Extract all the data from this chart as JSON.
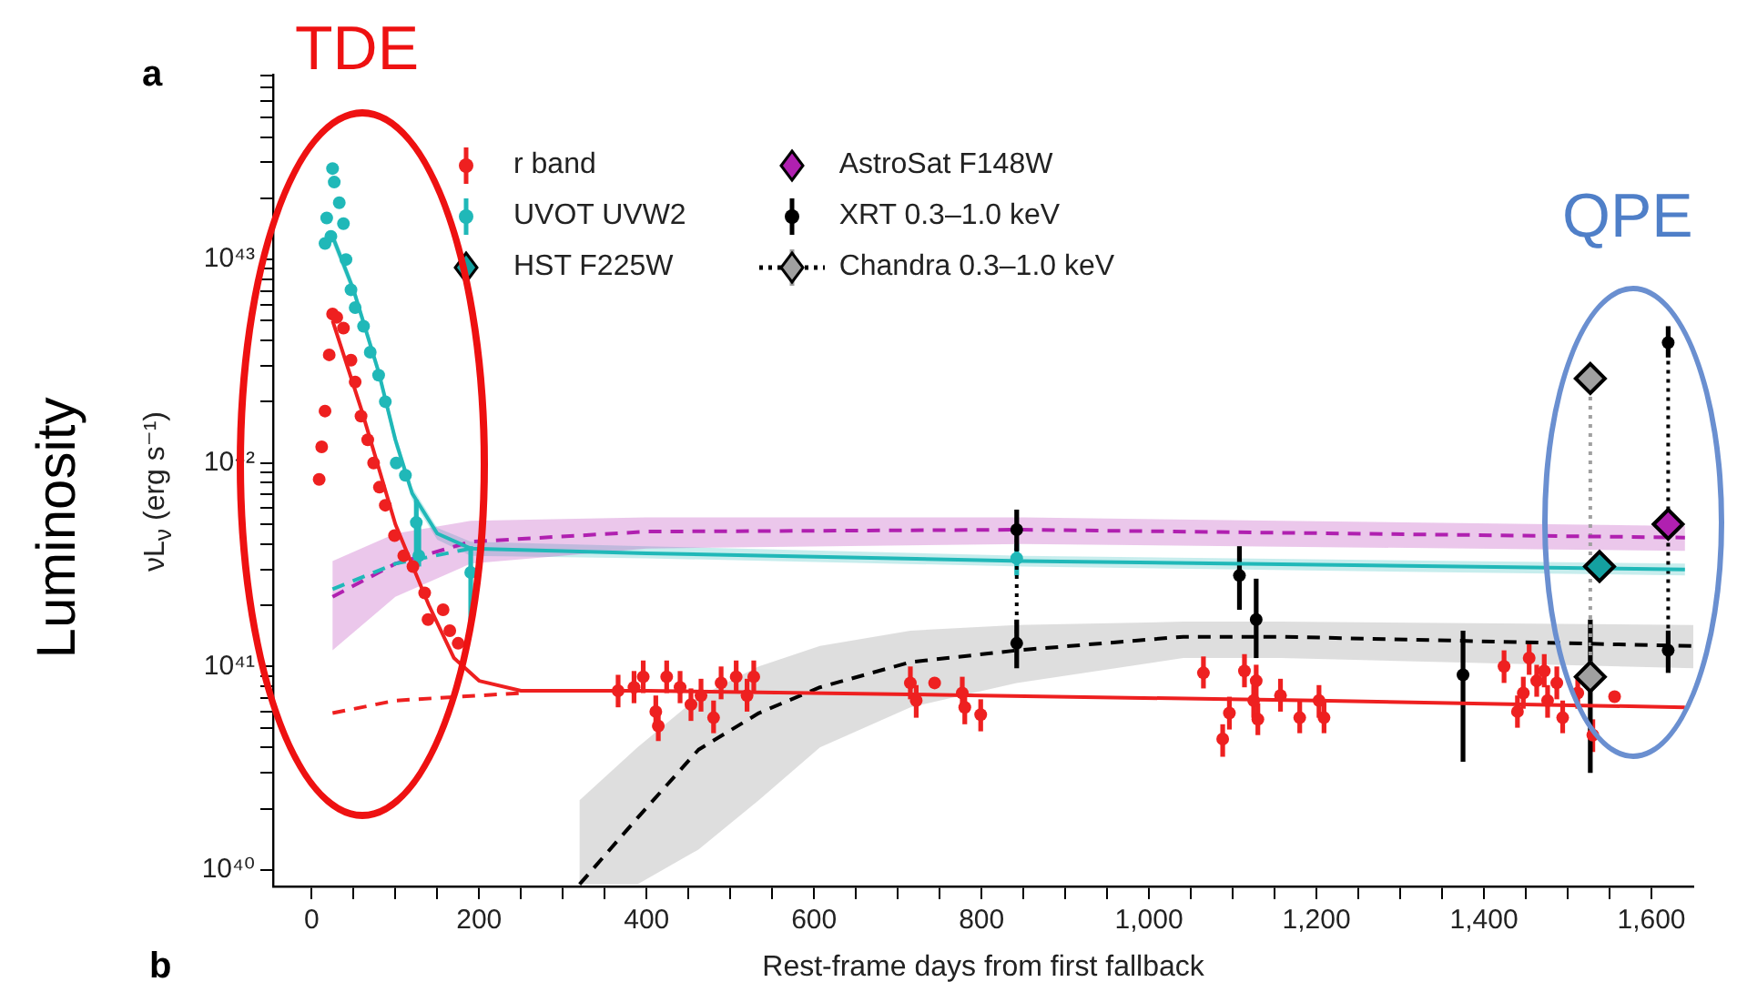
{
  "chart_data": {
    "type": "scatter",
    "xlabel": "Rest-frame days from first fallback",
    "ylabel": "νL$_{ν}$ (erg s⁻¹)",
    "log": "y",
    "legend": "top",
    "xlim": [
      -46,
      1650
    ],
    "ylim": [
      8.3e+39,
      8.1e+43
    ],
    "xticks": [
      {
        "value": 0,
        "label": "0"
      },
      {
        "value": 50,
        "label": null
      },
      {
        "value": 100,
        "label": null
      },
      {
        "value": 150,
        "label": null
      },
      {
        "value": 200,
        "label": "200"
      },
      {
        "value": 250,
        "label": null
      },
      {
        "value": 300,
        "label": null
      },
      {
        "value": 350,
        "label": null
      },
      {
        "value": 400,
        "label": "400"
      },
      {
        "value": 450,
        "label": null
      },
      {
        "value": 500,
        "label": null
      },
      {
        "value": 550,
        "label": null
      },
      {
        "value": 600,
        "label": "600"
      },
      {
        "value": 650,
        "label": null
      },
      {
        "value": 700,
        "label": null
      },
      {
        "value": 750,
        "label": null
      },
      {
        "value": 800,
        "label": "800"
      },
      {
        "value": 850,
        "label": null
      },
      {
        "value": 900,
        "label": null
      },
      {
        "value": 950,
        "label": null
      },
      {
        "value": 1000,
        "label": "1,000"
      },
      {
        "value": 1050,
        "label": null
      },
      {
        "value": 1100,
        "label": null
      },
      {
        "value": 1150,
        "label": null
      },
      {
        "value": 1200,
        "label": "1,200"
      },
      {
        "value": 1250,
        "label": null
      },
      {
        "value": 1300,
        "label": null
      },
      {
        "value": 1350,
        "label": null
      },
      {
        "value": 1400,
        "label": "1,400"
      },
      {
        "value": 1450,
        "label": null
      },
      {
        "value": 1500,
        "label": null
      },
      {
        "value": 1550,
        "label": null
      },
      {
        "value": 1600,
        "label": "1,600"
      }
    ],
    "yticks": [
      {
        "value": 1e+40,
        "label": "10⁴⁰"
      },
      {
        "value": 2e+40,
        "label": null
      },
      {
        "value": 3e+40,
        "label": null
      },
      {
        "value": 4e+40,
        "label": null
      },
      {
        "value": 5e+40,
        "label": null
      },
      {
        "value": 6e+40,
        "label": null
      },
      {
        "value": 7e+40,
        "label": null
      },
      {
        "value": 8e+40,
        "label": null
      },
      {
        "value": 9e+40,
        "label": null
      },
      {
        "value": 1e+41,
        "label": "10⁴¹"
      },
      {
        "value": 2e+41,
        "label": null
      },
      {
        "value": 3e+41,
        "label": null
      },
      {
        "value": 4e+41,
        "label": null
      },
      {
        "value": 5e+41,
        "label": null
      },
      {
        "value": 6e+41,
        "label": null
      },
      {
        "value": 7e+41,
        "label": null
      },
      {
        "value": 8e+41,
        "label": null
      },
      {
        "value": 9e+41,
        "label": null
      },
      {
        "value": 1e+42,
        "label": "10⁴²"
      },
      {
        "value": 2e+42,
        "label": null
      },
      {
        "value": 3e+42,
        "label": null
      },
      {
        "value": 4e+42,
        "label": null
      },
      {
        "value": 5e+42,
        "label": null
      },
      {
        "value": 6e+42,
        "label": null
      },
      {
        "value": 7e+42,
        "label": null
      },
      {
        "value": 8e+42,
        "label": null
      },
      {
        "value": 9e+42,
        "label": null
      },
      {
        "value": 1e+43,
        "label": "10⁴³"
      },
      {
        "value": 2e+43,
        "label": null
      },
      {
        "value": 3e+43,
        "label": null
      },
      {
        "value": 4e+43,
        "label": null
      },
      {
        "value": 5e+43,
        "label": null
      },
      {
        "value": 6e+43,
        "label": null
      },
      {
        "value": 7e+43,
        "label": null
      },
      {
        "value": 8e+43,
        "label": null
      }
    ],
    "annotations": [
      "a",
      "TDE",
      "QPE",
      "Luminosity",
      "b"
    ],
    "series": [
      {
        "type": "line",
        "color": "#ee2020",
        "line_style": "solid",
        "marker": "none",
        "x": [
          25,
          60,
          100,
          140,
          170,
          200,
          250,
          400,
          800,
          1200,
          1640
        ],
        "values": [
          5e+42,
          1.8e+42,
          5e+41,
          2e+41,
          1.1e+41,
          8.5e+40,
          7.6e+40,
          7.6e+40,
          7.2e+40,
          6.8e+40,
          6.3e+40
        ]
      },
      {
        "type": "line",
        "color": "#ee2020",
        "line_style": "dashed",
        "marker": "none",
        "x": [
          25,
          100,
          200,
          250
        ],
        "values": [
          5.9e+40,
          6.8e+40,
          7.2e+40,
          7.4e+40
        ]
      },
      {
        "type": "line",
        "color": "#20b8b8",
        "line_style": "solid",
        "marker": "none",
        "x": [
          25,
          50,
          80,
          100,
          120,
          150,
          190,
          400,
          850,
          1640
        ],
        "values": [
          1.3e+43,
          7.1e+42,
          2.8e+42,
          1.3e+42,
          7.1e+41,
          4.5e+41,
          3.8e+41,
          3.6e+41,
          3.3e+41,
          3e+41
        ],
        "lower": [
          1.2e+43,
          6.6e+42,
          2.6e+42,
          1.2e+42,
          6.6e+41,
          4.2e+41,
          3.5e+41,
          3.4e+41,
          3.1e+41,
          2.8e+41
        ],
        "upper": [
          1.4e+43,
          7.6e+42,
          3e+42,
          1.4e+42,
          7.6e+41,
          4.8e+41,
          4.1e+41,
          3.9e+41,
          3.5e+41,
          3.2e+41
        ]
      },
      {
        "type": "line",
        "color": "#20b8b8",
        "line_style": "dashed",
        "marker": "none",
        "x": [
          25,
          100,
          190
        ],
        "values": [
          2.4e+41,
          3.2e+41,
          3.8e+41
        ]
      },
      {
        "type": "line",
        "color": "#b020b0",
        "line_style": "dashed",
        "marker": "none",
        "x": [
          25,
          100,
          190,
          400,
          850,
          1640
        ],
        "values": [
          2.2e+41,
          3.2e+41,
          4.1e+41,
          4.6e+41,
          4.7e+41,
          4.3e+41
        ],
        "lower": [
          1.2e+41,
          2.2e+41,
          3.2e+41,
          3.8e+41,
          4e+41,
          3.7e+41
        ],
        "upper": [
          3.3e+41,
          4.5e+41,
          5.2e+41,
          5.4e+41,
          5.4e+41,
          4.9e+41
        ]
      },
      {
        "type": "line",
        "color": "#000000",
        "line_style": "dashed",
        "marker": "none",
        "x": [
          320,
          389,
          462,
          534,
          607,
          715,
          842,
          1041,
          1157,
          1650
        ],
        "values": [
          8.5e+39,
          1.8e+40,
          3.9e+40,
          5.9e+40,
          7.9e+40,
          1.05e+41,
          1.2e+41,
          1.4e+41,
          1.4e+41,
          1.26e+41
        ],
        "lower": [
          8.5e+39,
          8.5e+39,
          1.26e+40,
          2.2e+40,
          4e+40,
          6.3e+40,
          8.3e+40,
          1.1e+41,
          1.1e+41,
          9.8e+40
        ],
        "upper": [
          2.2e+40,
          4e+40,
          7.1e+40,
          1e+41,
          1.26e+41,
          1.5e+41,
          1.6e+41,
          1.66e+41,
          1.66e+41,
          1.6e+41
        ]
      },
      {
        "type": "line",
        "color": "#000000",
        "line_style": "dotted",
        "marker": "none",
        "x": [
          842,
          842
        ],
        "values": [
          4.7e+41,
          1.3e+41
        ]
      },
      {
        "type": "line",
        "color": "#000000",
        "line_style": "dotted",
        "marker": "none",
        "x": [
          1620,
          1620
        ],
        "values": [
          3.9e+42,
          1.2e+41
        ]
      },
      {
        "name": "r band",
        "color": "#ee2020",
        "marker": "circle",
        "x": [
          9,
          12,
          16,
          21,
          25,
          30,
          38,
          47,
          52,
          59,
          67,
          74,
          81,
          88,
          99,
          110,
          121,
          135,
          139,
          157,
          165,
          175,
          366,
          385,
          396,
          411,
          414,
          424,
          440,
          453,
          465,
          480,
          489,
          507,
          520,
          528,
          715,
          722,
          744,
          777,
          780,
          799,
          1065,
          1088,
          1096,
          1114,
          1125,
          1128,
          1130,
          1157,
          1180,
          1203,
          1209,
          1424,
          1440,
          1447,
          1454,
          1463,
          1472,
          1476,
          1487,
          1494,
          1512,
          1530,
          1556
        ],
        "values": [
          8.3e+41,
          1.2e+42,
          1.8e+42,
          3.4e+42,
          5.4e+42,
          5.2e+42,
          4.6e+42,
          3.2e+42,
          2.5e+42,
          1.7e+42,
          1.3e+42,
          1e+42,
          7.6e+41,
          6.2e+41,
          4.4e+41,
          3.5e+41,
          3.1e+41,
          2.3e+41,
          1.7e+41,
          1.9e+41,
          1.5e+41,
          1.3e+41,
          7.6e+40,
          7.9e+40,
          8.9e+40,
          6e+40,
          5.1e+40,
          8.9e+40,
          7.9e+40,
          6.5e+40,
          7.2e+40,
          5.6e+40,
          8.3e+40,
          8.9e+40,
          7.2e+40,
          8.9e+40,
          8.3e+40,
          6.8e+40,
          8.3e+40,
          7.4e+40,
          6.3e+40,
          5.8e+40,
          9.3e+40,
          4.4e+40,
          5.9e+40,
          9.5e+40,
          6.8e+40,
          8.5e+40,
          5.5e+40,
          7.2e+40,
          5.6e+40,
          6.8e+40,
          5.6e+40,
          1e+41,
          6e+40,
          7.4e+40,
          1.1e+41,
          8.5e+40,
          9.5e+40,
          6.8e+40,
          8.3e+40,
          5.6e+40,
          7.4e+40,
          4.6e+40,
          7.1e+40
        ],
        "errors": [
          null,
          null,
          null,
          null,
          null,
          null,
          null,
          null,
          null,
          null,
          null,
          null,
          null,
          null,
          null,
          null,
          null,
          null,
          null,
          null,
          null,
          null,
          [
            6.3e+40,
            9.1e+40
          ],
          [
            6.6e+40,
            9.5e+40
          ],
          [
            7.4e+40,
            1.07e+41
          ],
          [
            5e+40,
            7.2e+40
          ],
          [
            4.3e+40,
            6.2e+40
          ],
          [
            7.4e+40,
            1.07e+41
          ],
          [
            6.6e+40,
            9.5e+40
          ],
          [
            5.4e+40,
            7.8e+40
          ],
          [
            6e+40,
            8.7e+40
          ],
          [
            4.7e+40,
            6.8e+40
          ],
          [
            6.9e+40,
            1e+41
          ],
          [
            7.4e+40,
            1.07e+41
          ],
          [
            6e+40,
            8.7e+40
          ],
          [
            7.4e+40,
            1.07e+41
          ],
          [
            6.9e+40,
            1e+41
          ],
          [
            5.6e+40,
            8.1e+40
          ],
          null,
          [
            6.2e+40,
            8.9e+40
          ],
          [
            5.2e+40,
            7.6e+40
          ],
          [
            4.8e+40,
            6.9e+40
          ],
          [
            7.8e+40,
            1.12e+41
          ],
          [
            3.6e+40,
            5.2e+40
          ],
          [
            4.9e+40,
            7.1e+40
          ],
          [
            7.9e+40,
            1.15e+41
          ],
          [
            5.6e+40,
            8.1e+40
          ],
          [
            7.1e+40,
            1.02e+41
          ],
          [
            4.6e+40,
            6.6e+40
          ],
          [
            6e+40,
            8.7e+40
          ],
          [
            4.7e+40,
            6.8e+40
          ],
          [
            5.6e+40,
            8.1e+40
          ],
          [
            4.7e+40,
            6.8e+40
          ],
          [
            8.3e+40,
            1.2e+41
          ],
          [
            5e+40,
            7.2e+40
          ],
          [
            6.2e+40,
            8.9e+40
          ],
          [
            9.1e+40,
            1.3e+41
          ],
          [
            7.1e+40,
            1.02e+41
          ],
          [
            7.9e+40,
            1.15e+41
          ],
          [
            5.6e+40,
            8.1e+40
          ],
          [
            6.9e+40,
            1e+41
          ],
          [
            4.7e+40,
            6.8e+40
          ],
          [
            6.2e+40,
            8.9e+40
          ],
          [
            3.8e+40,
            5.5e+40
          ],
          null
        ]
      },
      {
        "name": "UVOT UVW2",
        "color": "#20b8b8",
        "marker": "circle",
        "x": [
          16,
          18,
          23,
          25,
          27,
          33,
          38,
          41,
          47,
          52,
          62,
          70,
          80,
          88,
          101,
          112,
          125,
          128,
          190,
          842
        ],
        "values": [
          1.2e+43,
          1.6e+43,
          1.3e+43,
          2.8e+43,
          2.4e+43,
          1.9e+43,
          1.5e+43,
          1e+43,
          7.1e+42,
          5.8e+42,
          4.7e+42,
          3.5e+42,
          2.7e+42,
          2e+42,
          1e+42,
          8.7e+41,
          5.1e+41,
          3.5e+41,
          2.9e+41,
          3.4e+41
        ],
        "errors": [
          null,
          null,
          null,
          null,
          null,
          null,
          null,
          null,
          null,
          null,
          null,
          null,
          null,
          null,
          null,
          null,
          [
            3.2e+41,
            6.6e+41
          ],
          [
            3.1e+41,
            5e+41
          ],
          [
            1.6e+41,
            3.9e+41
          ],
          [
            2.8e+41,
            4e+41
          ]
        ]
      },
      {
        "name": "HST F225W",
        "color": "#14a0a0",
        "marker": "diamond",
        "x": [
          1538
        ],
        "values": [
          3.1e+41
        ]
      },
      {
        "name": "AstroSat F148W",
        "color": "#b020b0",
        "marker": "diamond",
        "x": [
          1620
        ],
        "values": [
          5e+41
        ]
      },
      {
        "name": "XRT 0.3–1.0 keV",
        "color": "#000000",
        "marker": "circle",
        "x": [
          842,
          842,
          1108,
          1128,
          1375,
          1620,
          1620
        ],
        "values": [
          4.7e+41,
          1.3e+41,
          2.8e+41,
          1.7e+41,
          9.1e+40,
          3.9e+42,
          1.2e+41
        ],
        "errors": [
          [
            3.7e+41,
            5.9e+41
          ],
          [
            9.8e+40,
            1.7e+41
          ],
          [
            1.9e+41,
            3.9e+41
          ],
          [
            1.1e+41,
            2.7e+41
          ],
          [
            3.4e+40,
            1.5e+41
          ],
          [
            3.3e+42,
            4.7e+42
          ],
          [
            9.3e+40,
            1.5e+41
          ]
        ]
      },
      {
        "name": "Chandra 0.3–1.0 keV",
        "type": "line",
        "color": "#a0a0a0",
        "line_style": "dotted",
        "marker": "diamond",
        "x": [
          1527,
          1527
        ],
        "values": [
          2.6e+42,
          8.9e+40
        ],
        "errors": [
          null,
          [
            3e+40,
            1.7e+41
          ]
        ]
      }
    ]
  }
}
